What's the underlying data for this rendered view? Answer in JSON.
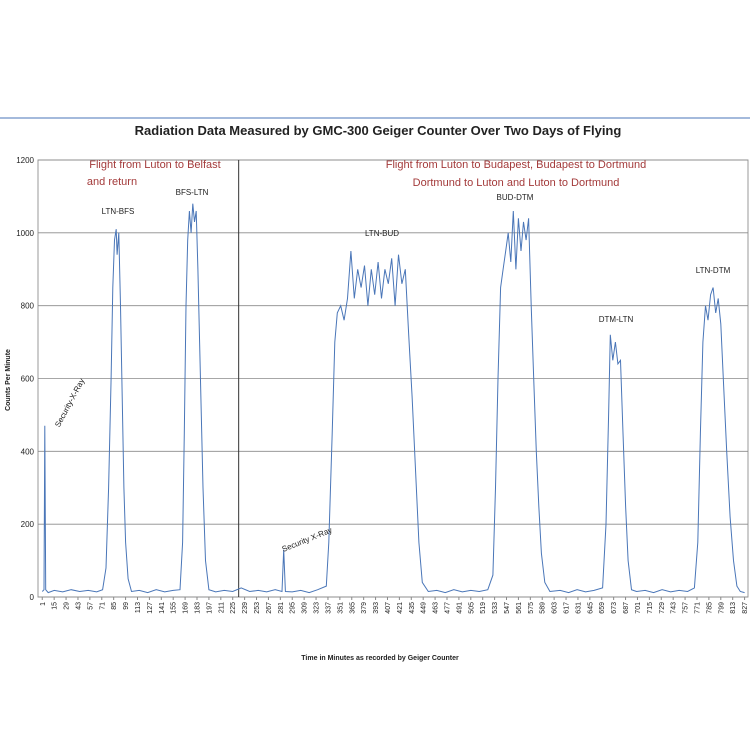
{
  "chart_data": {
    "type": "line",
    "title": "Radiation Data Measured by GMC-300 Geiger Counter Over Two Days of Flying",
    "x_label": "Time in Minutes as recorded by Geiger Counter",
    "y_label": "Counts Per Minute",
    "annotations": [
      "Flight  from Luton to Belfast",
      "and return",
      "Flight from Luton to Budapest, Budapest to Dortmund",
      "Dortmund to Luton and Luton to Dortmund",
      "Security-X-Ray",
      "LTN-BFS",
      "BFS-LTN",
      "Security X-Ray",
      "LTN-BUD",
      "BUD-DTM",
      "DTM-LTN",
      "LTN-DTM"
    ],
    "divider_x": 232,
    "xlim": [
      -4,
      831
    ],
    "ylim": [
      0,
      1200
    ],
    "xticks": [
      1,
      15,
      29,
      43,
      57,
      71,
      85,
      99,
      113,
      127,
      141,
      155,
      169,
      183,
      197,
      211,
      225,
      239,
      253,
      267,
      281,
      295,
      309,
      323,
      337,
      351,
      365,
      379,
      393,
      407,
      421,
      435,
      449,
      463,
      477,
      491,
      505,
      519,
      533,
      547,
      561,
      575,
      589,
      603,
      617,
      631,
      645,
      659,
      673,
      687,
      701,
      715,
      729,
      743,
      757,
      771,
      785,
      799,
      813,
      827
    ],
    "yticks": [
      0,
      200,
      400,
      600,
      800,
      1000,
      1200
    ],
    "grid": true,
    "series": [
      {
        "color": "#4a76b8",
        "x": [
          1,
          3,
          4,
          5,
          8,
          15,
          25,
          35,
          45,
          55,
          65,
          72,
          76,
          79,
          82,
          84,
          86,
          88,
          89,
          91,
          93,
          95,
          97,
          99,
          102,
          106,
          115,
          125,
          135,
          145,
          155,
          163,
          166,
          168,
          170,
          172,
          174,
          176,
          178,
          180,
          182,
          184,
          186,
          188,
          190,
          193,
          197,
          205,
          215,
          225,
          235,
          245,
          255,
          265,
          275,
          283,
          285,
          287,
          295,
          305,
          315,
          325,
          335,
          338,
          342,
          345,
          348,
          352,
          356,
          360,
          364,
          368,
          372,
          376,
          380,
          384,
          388,
          392,
          396,
          400,
          404,
          408,
          412,
          416,
          420,
          424,
          428,
          432,
          436,
          440,
          444,
          448,
          455,
          465,
          475,
          485,
          495,
          505,
          515,
          525,
          531,
          534,
          537,
          540,
          543,
          546,
          549,
          552,
          555,
          558,
          561,
          564,
          567,
          570,
          573,
          576,
          579,
          582,
          585,
          588,
          592,
          598,
          610,
          620,
          630,
          640,
          650,
          660,
          664,
          667,
          669,
          672,
          675,
          678,
          681,
          684,
          687,
          690,
          694,
          700,
          710,
          720,
          730,
          740,
          750,
          760,
          768,
          772,
          775,
          778,
          781,
          784,
          787,
          790,
          793,
          796,
          799,
          802,
          806,
          810,
          814,
          818,
          822,
          827
        ],
        "values": [
          15,
          20,
          470,
          20,
          12,
          18,
          14,
          20,
          15,
          18,
          14,
          20,
          80,
          300,
          600,
          850,
          980,
          1010,
          940,
          1000,
          800,
          550,
          300,
          150,
          50,
          15,
          18,
          12,
          20,
          14,
          18,
          20,
          150,
          450,
          800,
          980,
          1060,
          1000,
          1080,
          1030,
          1060,
          900,
          700,
          500,
          300,
          100,
          20,
          14,
          18,
          15,
          25,
          15,
          18,
          14,
          20,
          15,
          130,
          15,
          14,
          18,
          12,
          20,
          30,
          150,
          450,
          700,
          780,
          800,
          760,
          820,
          950,
          820,
          900,
          850,
          910,
          800,
          900,
          830,
          920,
          820,
          900,
          860,
          930,
          800,
          940,
          860,
          900,
          720,
          550,
          350,
          150,
          40,
          15,
          18,
          12,
          20,
          14,
          18,
          15,
          20,
          60,
          300,
          600,
          850,
          900,
          950,
          1000,
          920,
          1060,
          900,
          1040,
          950,
          1030,
          980,
          1040,
          800,
          600,
          400,
          250,
          120,
          40,
          15,
          18,
          12,
          20,
          14,
          18,
          25,
          200,
          500,
          720,
          650,
          700,
          640,
          650,
          450,
          250,
          100,
          20,
          15,
          18,
          12,
          20,
          14,
          18,
          15,
          25,
          150,
          450,
          700,
          800,
          760,
          830,
          850,
          780,
          820,
          750,
          600,
          400,
          220,
          100,
          30,
          15,
          12
        ]
      }
    ]
  }
}
